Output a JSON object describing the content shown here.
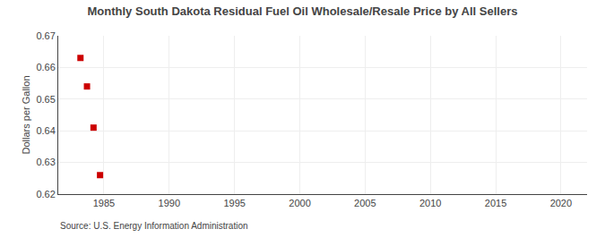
{
  "chart_data": {
    "type": "scatter",
    "title": "Monthly South Dakota Residual Fuel Oil Wholesale/Resale Price by All Sellers",
    "ylabel": "Dollars per Gallon",
    "annotations": [
      "Source: U.S. Energy Information Administration"
    ],
    "x": [
      1983.2,
      1983.7,
      1984.2,
      1984.7
    ],
    "values": [
      0.663,
      0.654,
      0.641,
      0.626
    ],
    "color": "#cc0000",
    "marker": "square",
    "xlim": [
      1981.5,
      2022
    ],
    "ylim": [
      0.62,
      0.67
    ],
    "xticks": [
      1985,
      1990,
      1995,
      2000,
      2005,
      2010,
      2015,
      2020
    ],
    "yticks": [
      0.62,
      0.63,
      0.64,
      0.65,
      0.66,
      0.67
    ],
    "grid": true
  }
}
